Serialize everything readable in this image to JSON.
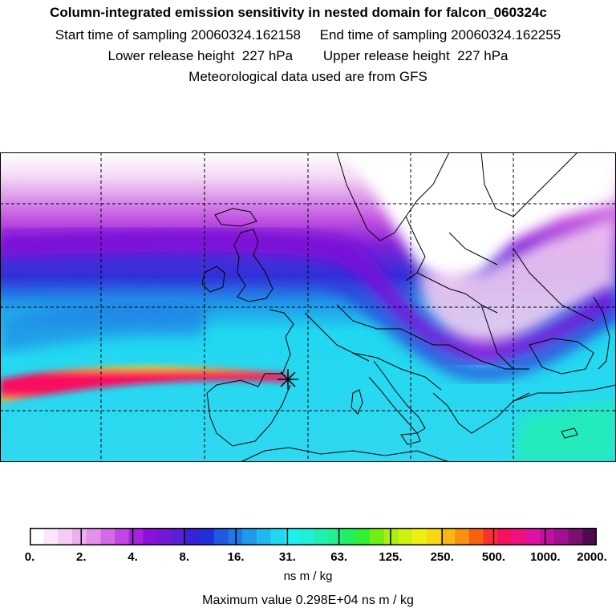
{
  "header": {
    "title": "Column-integrated emission sensitivity in nested domain for falcon_060324c",
    "sampling_line": "Start time of sampling 20060324.162158     End time of sampling 20060324.162255",
    "release_line": "Lower release height  227 hPa        Upper release height  227 hPa",
    "met_line": "Meteorological data used are from GFS"
  },
  "colorbar": {
    "tick_labels": [
      "0.",
      "2.",
      "4.",
      "8.",
      "16.",
      "31.",
      "63.",
      "125.",
      "250.",
      "500.",
      "1000.",
      "2000."
    ],
    "colors": [
      "#ffffff",
      "#fbe6fb",
      "#f4ccf4",
      "#ebb0ee",
      "#e390ea",
      "#d46ae6",
      "#c445e4",
      "#a820e0",
      "#8a10dc",
      "#7418d8",
      "#5a20d8",
      "#3a20d8",
      "#2030d8",
      "#2058e0",
      "#2078e8",
      "#2098ee",
      "#20b8f0",
      "#20d8f0",
      "#20f0f0",
      "#20f0d8",
      "#20f0b0",
      "#20f090",
      "#20f060",
      "#30f030",
      "#70f010",
      "#a8f010",
      "#d0f010",
      "#f0f010",
      "#f8d810",
      "#f8b810",
      "#f89010",
      "#f86010",
      "#f83030",
      "#f81060",
      "#f01080",
      "#e010a0",
      "#c010a0",
      "#a01090",
      "#7a1070",
      "#500a50"
    ],
    "units": "ns m / kg"
  },
  "footer": {
    "max_value": "Maximum value  0.298E+04 ns m / kg"
  },
  "map": {
    "release_marker": "release-point",
    "grid": "dashed"
  }
}
